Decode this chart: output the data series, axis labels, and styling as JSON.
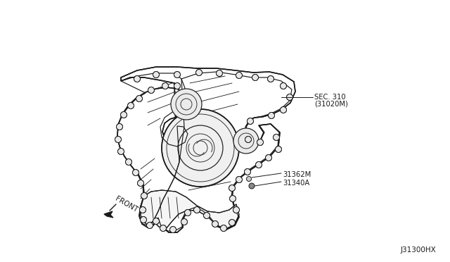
{
  "background_color": "#ffffff",
  "line_color": "#1a1a1a",
  "text_color": "#1a1a1a",
  "label_sec310_line1": "SEC. 310",
  "label_sec310_line2": "(31020M)",
  "label_31362M": "31362M",
  "label_31340A": "31340A",
  "label_front": "FRONT",
  "label_diagram_id": "J31300HX",
  "figsize": [
    6.4,
    3.72
  ],
  "dpi": 100
}
